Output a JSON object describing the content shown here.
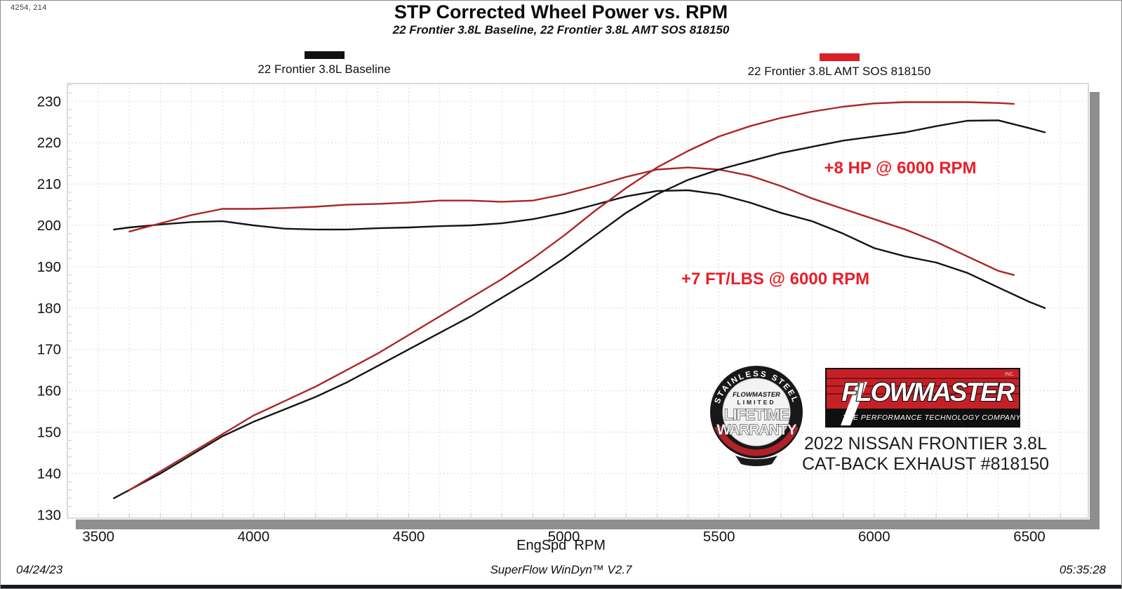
{
  "window": {
    "cursor_readout": "4254, 214"
  },
  "header": {
    "title": "STP Corrected Wheel Power vs. RPM",
    "subtitle": "22 Frontier 3.8L Baseline, 22 Frontier 3.8L AMT SOS 818150"
  },
  "legend": [
    {
      "label": "22 Frontier 3.8L Baseline",
      "color": "#111111"
    },
    {
      "label": "22 Frontier 3.8L AMT SOS 818150",
      "color": "#da1f26"
    }
  ],
  "annotations": [
    {
      "text": "+8 HP @ 6000 RPM",
      "color": "#e8202a"
    },
    {
      "text": "+7 FT/LBS @ 6000 RPM",
      "color": "#e8202a"
    }
  ],
  "branding": {
    "badge": {
      "arc_top": "STAINLESS STEEL",
      "brand": "FLOWMASTER",
      "line1": "LIMITED",
      "line2": "LIFETIME",
      "line3": "WARRANTY"
    },
    "logo": {
      "name": "FLOWMASTER",
      "inc": "INC.",
      "tagline": "THE PERFORMANCE TECHNOLOGY COMPANY"
    },
    "vehicle_line1": "2022 NISSAN FRONTIER 3.8L",
    "vehicle_line2": "CAT-BACK EXHAUST #818150"
  },
  "footer": {
    "date": "04/24/23",
    "app": "SuperFlow WinDyn™ V2.7",
    "time": "05:35:28"
  },
  "colors": {
    "curve_black": "#141414",
    "curve_red": "#ab2626",
    "grid": "#dcdcdc",
    "minor_tick": "#c9c9c9",
    "frame": "#b6b6b6",
    "shadow": "#8e8e8e"
  },
  "chart_data": {
    "type": "line",
    "title": "STP Corrected Wheel Power vs. RPM",
    "xlabel": "EngSpd  RPM",
    "ylabel": "",
    "xlim": [
      3400,
      6690
    ],
    "ylim": [
      129.2,
      234.3
    ],
    "x_ticks": [
      3500,
      4000,
      4500,
      5000,
      5500,
      6000,
      6500
    ],
    "y_ticks": [
      130,
      140,
      150,
      160,
      170,
      180,
      190,
      200,
      210,
      220,
      230
    ],
    "grid": "dashed, vertical every 100 RPM, horizontal every 10",
    "legend_position": "top",
    "series": [
      {
        "name": "22 Frontier 3.8L Baseline (FT/LBS)",
        "color": "#141414",
        "points": [
          [
            3550,
            199
          ],
          [
            3600,
            199.5
          ],
          [
            3700,
            200.2
          ],
          [
            3800,
            200.8
          ],
          [
            3900,
            201
          ],
          [
            4000,
            200
          ],
          [
            4100,
            199.2
          ],
          [
            4200,
            199
          ],
          [
            4300,
            199
          ],
          [
            4400,
            199.3
          ],
          [
            4500,
            199.5
          ],
          [
            4600,
            199.8
          ],
          [
            4700,
            200
          ],
          [
            4800,
            200.5
          ],
          [
            4900,
            201.5
          ],
          [
            5000,
            203
          ],
          [
            5100,
            205
          ],
          [
            5200,
            207
          ],
          [
            5300,
            208.3
          ],
          [
            5400,
            208.5
          ],
          [
            5500,
            207.5
          ],
          [
            5600,
            205.5
          ],
          [
            5700,
            203
          ],
          [
            5800,
            201
          ],
          [
            5900,
            198
          ],
          [
            6000,
            194.5
          ],
          [
            6100,
            192.5
          ],
          [
            6200,
            191
          ],
          [
            6300,
            188.5
          ],
          [
            6400,
            185
          ],
          [
            6500,
            181.5
          ],
          [
            6550,
            180
          ]
        ]
      },
      {
        "name": "22 Frontier 3.8L AMT SOS 818150 (FT/LBS)",
        "color": "#ab2626",
        "points": [
          [
            3600,
            198.5
          ],
          [
            3700,
            200.5
          ],
          [
            3800,
            202.5
          ],
          [
            3900,
            204
          ],
          [
            4000,
            204
          ],
          [
            4100,
            204.2
          ],
          [
            4200,
            204.5
          ],
          [
            4300,
            205
          ],
          [
            4400,
            205.2
          ],
          [
            4500,
            205.5
          ],
          [
            4600,
            206
          ],
          [
            4700,
            206
          ],
          [
            4800,
            205.7
          ],
          [
            4900,
            206
          ],
          [
            5000,
            207.5
          ],
          [
            5100,
            209.5
          ],
          [
            5200,
            211.7
          ],
          [
            5300,
            213.5
          ],
          [
            5400,
            214
          ],
          [
            5500,
            213.5
          ],
          [
            5600,
            212
          ],
          [
            5700,
            209.5
          ],
          [
            5800,
            206.5
          ],
          [
            5900,
            204
          ],
          [
            6000,
            201.5
          ],
          [
            6100,
            199
          ],
          [
            6200,
            196
          ],
          [
            6300,
            192.5
          ],
          [
            6400,
            189
          ],
          [
            6450,
            188
          ]
        ]
      },
      {
        "name": "22 Frontier 3.8L Baseline (HP)",
        "color": "#141414",
        "points": [
          [
            3550,
            134
          ],
          [
            3600,
            136
          ],
          [
            3700,
            140
          ],
          [
            3800,
            144.5
          ],
          [
            3900,
            149
          ],
          [
            4000,
            152.5
          ],
          [
            4100,
            155.5
          ],
          [
            4200,
            158.5
          ],
          [
            4300,
            162
          ],
          [
            4400,
            166
          ],
          [
            4500,
            170
          ],
          [
            4600,
            174
          ],
          [
            4700,
            178
          ],
          [
            4800,
            182.5
          ],
          [
            4900,
            187
          ],
          [
            5000,
            192
          ],
          [
            5100,
            197.5
          ],
          [
            5200,
            203
          ],
          [
            5300,
            207.5
          ],
          [
            5400,
            211
          ],
          [
            5500,
            213.5
          ],
          [
            5600,
            215.5
          ],
          [
            5700,
            217.5
          ],
          [
            5800,
            219
          ],
          [
            5900,
            220.5
          ],
          [
            6000,
            221.5
          ],
          [
            6100,
            222.5
          ],
          [
            6200,
            224
          ],
          [
            6300,
            225.3
          ],
          [
            6400,
            225.4
          ],
          [
            6500,
            223.5
          ],
          [
            6550,
            222.5
          ]
        ]
      },
      {
        "name": "22 Frontier 3.8L AMT SOS 818150 (HP)",
        "color": "#ab2626",
        "points": [
          [
            3600,
            136
          ],
          [
            3700,
            140.5
          ],
          [
            3800,
            145
          ],
          [
            3900,
            149.5
          ],
          [
            4000,
            154
          ],
          [
            4100,
            157.5
          ],
          [
            4200,
            161
          ],
          [
            4300,
            165
          ],
          [
            4400,
            169
          ],
          [
            4500,
            173.5
          ],
          [
            4600,
            178
          ],
          [
            4700,
            182.5
          ],
          [
            4800,
            187
          ],
          [
            4900,
            192
          ],
          [
            5000,
            197.5
          ],
          [
            5100,
            203.5
          ],
          [
            5200,
            209
          ],
          [
            5300,
            214
          ],
          [
            5400,
            218
          ],
          [
            5500,
            221.5
          ],
          [
            5600,
            224
          ],
          [
            5700,
            226
          ],
          [
            5800,
            227.5
          ],
          [
            5900,
            228.7
          ],
          [
            6000,
            229.5
          ],
          [
            6100,
            229.8
          ],
          [
            6200,
            229.8
          ],
          [
            6300,
            229.8
          ],
          [
            6400,
            229.6
          ],
          [
            6450,
            229.4
          ]
        ]
      }
    ]
  }
}
